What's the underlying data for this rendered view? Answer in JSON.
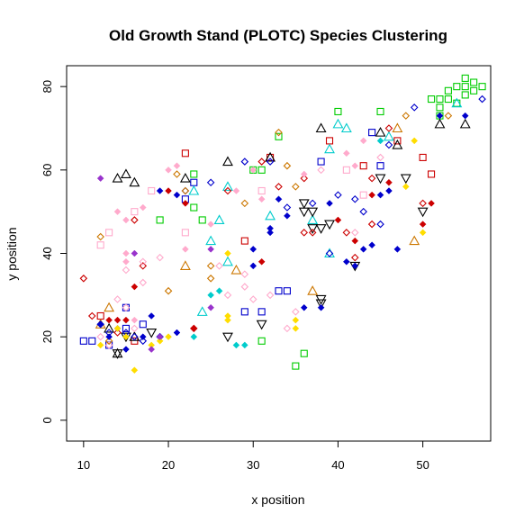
{
  "chart_data": {
    "type": "scatter",
    "title": "Old Growth Stand (PLOTC) Species Clustering",
    "xlabel": "x position",
    "ylabel": "y position",
    "xlim": [
      8,
      58
    ],
    "ylim": [
      -5,
      85
    ],
    "xticks": [
      10,
      20,
      30,
      40,
      50
    ],
    "yticks": [
      0,
      20,
      40,
      60,
      80
    ],
    "grid": false,
    "legend": "none",
    "series": [
      {
        "marker": "square-open",
        "color": "#00cc00",
        "points": [
          [
            52,
            75
          ],
          [
            53,
            77
          ],
          [
            53,
            79
          ],
          [
            54,
            80
          ],
          [
            55,
            80
          ],
          [
            55,
            82
          ],
          [
            56,
            81
          ],
          [
            56,
            79
          ],
          [
            57,
            80
          ],
          [
            52,
            77
          ],
          [
            54,
            76
          ],
          [
            51,
            77
          ],
          [
            45,
            74
          ],
          [
            40,
            74
          ],
          [
            33,
            68
          ],
          [
            31,
            60
          ],
          [
            30,
            60
          ],
          [
            23,
            59
          ],
          [
            23,
            51
          ],
          [
            24,
            48
          ],
          [
            19,
            48
          ],
          [
            36,
            16
          ],
          [
            35,
            13
          ],
          [
            31,
            19
          ],
          [
            52,
            73
          ],
          [
            55,
            78
          ]
        ]
      },
      {
        "marker": "square-open",
        "color": "#cc0000",
        "points": [
          [
            22,
            64
          ],
          [
            50,
            63
          ],
          [
            51,
            59
          ],
          [
            12,
            25
          ],
          [
            16,
            19
          ],
          [
            29,
            43
          ],
          [
            32,
            63
          ],
          [
            39,
            67
          ],
          [
            47,
            67
          ],
          [
            43,
            61
          ]
        ]
      },
      {
        "marker": "square-open",
        "color": "#0000cc",
        "points": [
          [
            10,
            19
          ],
          [
            11,
            19
          ],
          [
            13,
            18
          ],
          [
            15,
            27
          ],
          [
            15,
            22
          ],
          [
            17,
            23
          ],
          [
            22,
            53
          ],
          [
            23,
            57
          ],
          [
            29,
            26
          ],
          [
            31,
            26
          ],
          [
            33,
            31
          ],
          [
            38,
            62
          ],
          [
            44,
            69
          ],
          [
            45,
            61
          ],
          [
            34,
            31
          ]
        ]
      },
      {
        "marker": "square-open",
        "color": "#ffaacc",
        "points": [
          [
            13,
            45
          ],
          [
            12,
            42
          ],
          [
            18,
            55
          ],
          [
            22,
            45
          ],
          [
            31,
            55
          ],
          [
            16,
            50
          ],
          [
            41,
            60
          ],
          [
            43,
            54
          ]
        ]
      },
      {
        "marker": "triangle-open",
        "color": "#000000",
        "points": [
          [
            14,
            58
          ],
          [
            15,
            59
          ],
          [
            16,
            57
          ],
          [
            22,
            58
          ],
          [
            27,
            62
          ],
          [
            32,
            63
          ],
          [
            38,
            70
          ],
          [
            45,
            69
          ],
          [
            47,
            66
          ],
          [
            52,
            71
          ],
          [
            55,
            71
          ],
          [
            14,
            16
          ],
          [
            16,
            20
          ],
          [
            13,
            22
          ]
        ]
      },
      {
        "marker": "triangle-open",
        "color": "#00cccc",
        "points": [
          [
            23,
            55
          ],
          [
            26,
            48
          ],
          [
            25,
            43
          ],
          [
            27,
            38
          ],
          [
            24,
            26
          ],
          [
            27,
            56
          ],
          [
            32,
            49
          ],
          [
            37,
            48
          ],
          [
            39,
            40
          ],
          [
            40,
            71
          ],
          [
            41,
            70
          ],
          [
            46,
            68
          ],
          [
            54,
            76
          ],
          [
            39,
            65
          ]
        ]
      },
      {
        "marker": "triangle-open",
        "color": "#cc7700",
        "points": [
          [
            13,
            27
          ],
          [
            12,
            23
          ],
          [
            22,
            37
          ],
          [
            28,
            36
          ],
          [
            37,
            31
          ],
          [
            49,
            43
          ],
          [
            47,
            70
          ]
        ]
      },
      {
        "marker": "triangle-down-open",
        "color": "#000000",
        "points": [
          [
            14,
            16
          ],
          [
            15,
            20
          ],
          [
            18,
            21
          ],
          [
            27,
            20
          ],
          [
            31,
            23
          ],
          [
            36,
            52
          ],
          [
            36,
            50
          ],
          [
            37,
            50
          ],
          [
            37,
            46
          ],
          [
            38,
            29
          ],
          [
            38,
            28
          ],
          [
            38,
            46
          ],
          [
            39,
            47
          ],
          [
            42,
            37
          ],
          [
            45,
            58
          ],
          [
            48,
            58
          ],
          [
            50,
            50
          ]
        ]
      },
      {
        "marker": "diamond-open",
        "color": "#0000cc",
        "points": [
          [
            12,
            23
          ],
          [
            13,
            21
          ],
          [
            15,
            21
          ],
          [
            16,
            20
          ],
          [
            17,
            19
          ],
          [
            19,
            20
          ],
          [
            22,
            55
          ],
          [
            25,
            57
          ],
          [
            29,
            62
          ],
          [
            32,
            62
          ],
          [
            34,
            51
          ],
          [
            37,
            52
          ],
          [
            40,
            54
          ],
          [
            43,
            50
          ],
          [
            45,
            47
          ],
          [
            46,
            66
          ],
          [
            49,
            75
          ],
          [
            57,
            77
          ],
          [
            42,
            53
          ],
          [
            39,
            40
          ]
        ]
      },
      {
        "marker": "diamond-open",
        "color": "#cc0000",
        "points": [
          [
            10,
            34
          ],
          [
            11,
            25
          ],
          [
            14,
            21
          ],
          [
            16,
            48
          ],
          [
            17,
            37
          ],
          [
            23,
            22
          ],
          [
            27,
            55
          ],
          [
            33,
            56
          ],
          [
            36,
            58
          ],
          [
            36,
            45
          ],
          [
            37,
            45
          ],
          [
            41,
            45
          ],
          [
            42,
            39
          ],
          [
            44,
            58
          ],
          [
            44,
            47
          ],
          [
            46,
            70
          ],
          [
            50,
            52
          ],
          [
            31,
            62
          ]
        ]
      },
      {
        "marker": "diamond-open",
        "color": "#ffaacc",
        "points": [
          [
            12,
            20
          ],
          [
            13,
            18
          ],
          [
            14,
            29
          ],
          [
            15,
            27
          ],
          [
            15,
            36
          ],
          [
            16,
            22
          ],
          [
            17,
            38
          ],
          [
            17,
            33
          ],
          [
            19,
            39
          ],
          [
            26,
            37
          ],
          [
            27,
            30
          ],
          [
            29,
            35
          ],
          [
            29,
            32
          ],
          [
            30,
            29
          ],
          [
            32,
            30
          ],
          [
            34,
            22
          ],
          [
            35,
            26
          ],
          [
            38,
            60
          ],
          [
            42,
            45
          ],
          [
            45,
            63
          ]
        ]
      },
      {
        "marker": "diamond-open",
        "color": "#cc7700",
        "points": [
          [
            12,
            44
          ],
          [
            13,
            19
          ],
          [
            20,
            31
          ],
          [
            21,
            59
          ],
          [
            22,
            55
          ],
          [
            25,
            37
          ],
          [
            29,
            52
          ],
          [
            33,
            69
          ],
          [
            34,
            61
          ],
          [
            35,
            56
          ],
          [
            48,
            73
          ],
          [
            53,
            73
          ],
          [
            25,
            34
          ]
        ]
      },
      {
        "marker": "diamond-filled",
        "color": "#0000cc",
        "points": [
          [
            12,
            23
          ],
          [
            13,
            20
          ],
          [
            14,
            22
          ],
          [
            15,
            17
          ],
          [
            17,
            20
          ],
          [
            18,
            25
          ],
          [
            19,
            55
          ],
          [
            21,
            21
          ],
          [
            21,
            54
          ],
          [
            30,
            41
          ],
          [
            30,
            37
          ],
          [
            32,
            46
          ],
          [
            32,
            45
          ],
          [
            33,
            53
          ],
          [
            34,
            49
          ],
          [
            36,
            27
          ],
          [
            38,
            27
          ],
          [
            39,
            52
          ],
          [
            41,
            38
          ],
          [
            42,
            37
          ],
          [
            43,
            41
          ],
          [
            44,
            42
          ],
          [
            45,
            54
          ],
          [
            47,
            41
          ],
          [
            52,
            73
          ],
          [
            55,
            73
          ],
          [
            46,
            55
          ]
        ]
      },
      {
        "marker": "diamond-filled",
        "color": "#cc0000",
        "points": [
          [
            13,
            24
          ],
          [
            14,
            24
          ],
          [
            15,
            24
          ],
          [
            16,
            32
          ],
          [
            20,
            55
          ],
          [
            22,
            52
          ],
          [
            23,
            22
          ],
          [
            31,
            38
          ],
          [
            40,
            48
          ],
          [
            42,
            43
          ],
          [
            44,
            54
          ],
          [
            46,
            57
          ],
          [
            50,
            47
          ],
          [
            51,
            52
          ]
        ]
      },
      {
        "marker": "diamond-filled",
        "color": "#ffaacc",
        "points": [
          [
            14,
            50
          ],
          [
            15,
            48
          ],
          [
            15,
            40
          ],
          [
            15,
            38
          ],
          [
            16,
            24
          ],
          [
            17,
            51
          ],
          [
            20,
            60
          ],
          [
            21,
            61
          ],
          [
            22,
            41
          ],
          [
            25,
            47
          ],
          [
            28,
            55
          ],
          [
            31,
            53
          ],
          [
            36,
            59
          ],
          [
            41,
            64
          ],
          [
            42,
            61
          ],
          [
            43,
            67
          ],
          [
            30,
            60
          ]
        ]
      },
      {
        "marker": "diamond-filled",
        "color": "#ffdd00",
        "points": [
          [
            12,
            18
          ],
          [
            14,
            22
          ],
          [
            16,
            12
          ],
          [
            18,
            18
          ],
          [
            19,
            19
          ],
          [
            20,
            20
          ],
          [
            27,
            40
          ],
          [
            27,
            25
          ],
          [
            27,
            24
          ],
          [
            35,
            24
          ],
          [
            35,
            22
          ],
          [
            48,
            56
          ],
          [
            49,
            67
          ],
          [
            50,
            45
          ],
          [
            15,
            20
          ]
        ]
      },
      {
        "marker": "diamond-filled",
        "color": "#9933cc",
        "points": [
          [
            12,
            58
          ],
          [
            16,
            40
          ],
          [
            18,
            17
          ],
          [
            19,
            20
          ],
          [
            25,
            27
          ],
          [
            25,
            41
          ]
        ]
      },
      {
        "marker": "diamond-filled",
        "color": "#00cccc",
        "points": [
          [
            25,
            30
          ],
          [
            26,
            31
          ],
          [
            28,
            18
          ],
          [
            29,
            18
          ],
          [
            23,
            20
          ],
          [
            45,
            67
          ]
        ]
      }
    ]
  }
}
